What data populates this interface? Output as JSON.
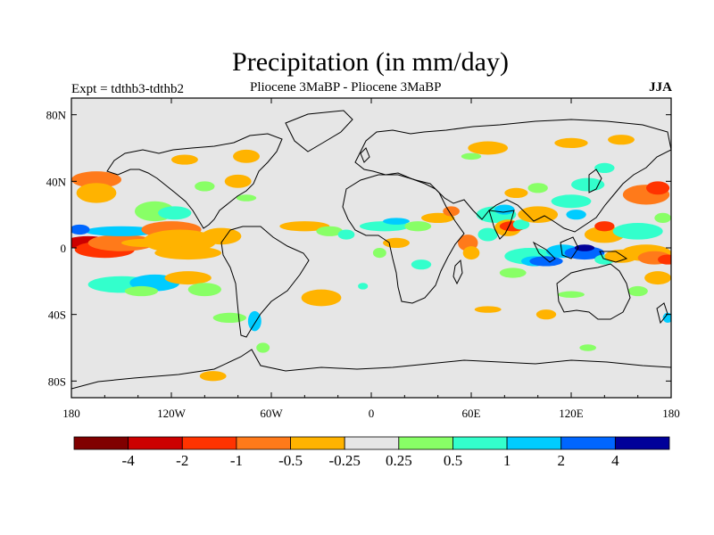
{
  "title": "Precipitation (in mm/day)",
  "subtitle_left": "Expt = tdthb3-tdthb2",
  "subtitle_center": "Pliocene   3MaBP - Pliocene   3MaBP",
  "subtitle_right": "JJA",
  "map": {
    "background_color": "#e6e6e6",
    "lon_range": [
      -180,
      180
    ],
    "lat_range": [
      -90,
      90
    ],
    "lon_ticks": [
      {
        "value": -180,
        "label": "180"
      },
      {
        "value": -120,
        "label": "120W"
      },
      {
        "value": -60,
        "label": "60W"
      },
      {
        "value": 0,
        "label": "0"
      },
      {
        "value": 60,
        "label": "60E"
      },
      {
        "value": 120,
        "label": "120E"
      },
      {
        "value": 180,
        "label": "180"
      }
    ],
    "lat_ticks": [
      {
        "value": 80,
        "label": "80N"
      },
      {
        "value": 40,
        "label": "40N"
      },
      {
        "value": 0,
        "label": "0"
      },
      {
        "value": -40,
        "label": "40S"
      },
      {
        "value": -80,
        "label": "80S"
      }
    ]
  },
  "colorbar": {
    "colors": [
      "#800000",
      "#cc0000",
      "#ff3300",
      "#ff7a1a",
      "#ffb300",
      "#e6e6e6",
      "#88ff66",
      "#33ffcc",
      "#00ccff",
      "#0066ff",
      "#000099"
    ],
    "labels": [
      "-4",
      "-2",
      "-1",
      "-0.5",
      "-0.25",
      "0.25",
      "0.5",
      "1",
      "2",
      "4"
    ]
  },
  "anomalies": [
    {
      "lon": -170,
      "lat": 3,
      "rx": 15,
      "ry": 4,
      "value": -3
    },
    {
      "lon": -160,
      "lat": -1,
      "rx": 18,
      "ry": 5,
      "value": -2
    },
    {
      "lon": -150,
      "lat": 3,
      "rx": 20,
      "ry": 5,
      "value": -0.75
    },
    {
      "lon": -135,
      "lat": 3,
      "rx": 15,
      "ry": 2.5,
      "value": -0.35
    },
    {
      "lon": -150,
      "lat": 10,
      "rx": 22,
      "ry": 3,
      "value": 1.5
    },
    {
      "lon": -175,
      "lat": 11,
      "rx": 6,
      "ry": 3,
      "value": 2.5
    },
    {
      "lon": -120,
      "lat": 11,
      "rx": 18,
      "ry": 5,
      "value": -0.75
    },
    {
      "lon": -115,
      "lat": 4,
      "rx": 22,
      "ry": 7,
      "value": -0.35
    },
    {
      "lon": -110,
      "lat": -3,
      "rx": 20,
      "ry": 4,
      "value": -0.35
    },
    {
      "lon": -90,
      "lat": 7,
      "rx": 12,
      "ry": 5,
      "value": -0.35
    },
    {
      "lon": -130,
      "lat": 22,
      "rx": 12,
      "ry": 6,
      "value": 0.35
    },
    {
      "lon": -118,
      "lat": 21,
      "rx": 10,
      "ry": 4,
      "value": 0.75
    },
    {
      "lon": -165,
      "lat": 41,
      "rx": 15,
      "ry": 5,
      "value": -0.75
    },
    {
      "lon": -165,
      "lat": 33,
      "rx": 12,
      "ry": 6,
      "value": -0.35
    },
    {
      "lon": -150,
      "lat": -22,
      "rx": 20,
      "ry": 5,
      "value": 0.75
    },
    {
      "lon": -130,
      "lat": -21,
      "rx": 15,
      "ry": 5,
      "value": 1.5
    },
    {
      "lon": -110,
      "lat": -18,
      "rx": 14,
      "ry": 4,
      "value": -0.35
    },
    {
      "lon": -100,
      "lat": -25,
      "rx": 10,
      "ry": 4,
      "value": 0.35
    },
    {
      "lon": -138,
      "lat": -26,
      "rx": 10,
      "ry": 3,
      "value": 0.35
    },
    {
      "lon": -85,
      "lat": -42,
      "rx": 10,
      "ry": 3,
      "value": 0.35
    },
    {
      "lon": -70,
      "lat": -44,
      "rx": 4,
      "ry": 6,
      "value": 1.5
    },
    {
      "lon": -65,
      "lat": -60,
      "rx": 4,
      "ry": 3,
      "value": 0.35
    },
    {
      "lon": -95,
      "lat": -77,
      "rx": 8,
      "ry": 3,
      "value": -0.35
    },
    {
      "lon": -112,
      "lat": 53,
      "rx": 8,
      "ry": 3,
      "value": -0.35
    },
    {
      "lon": -75,
      "lat": 55,
      "rx": 8,
      "ry": 4,
      "value": -0.35
    },
    {
      "lon": -80,
      "lat": 40,
      "rx": 8,
      "ry": 4,
      "value": -0.35
    },
    {
      "lon": -100,
      "lat": 37,
      "rx": 6,
      "ry": 3,
      "value": 0.35
    },
    {
      "lon": -75,
      "lat": 30,
      "rx": 6,
      "ry": 2,
      "value": 0.35
    },
    {
      "lon": -40,
      "lat": 13,
      "rx": 15,
      "ry": 3,
      "value": -0.35
    },
    {
      "lon": -25,
      "lat": 10,
      "rx": 8,
      "ry": 3,
      "value": 0.35
    },
    {
      "lon": -15,
      "lat": 8,
      "rx": 5,
      "ry": 3,
      "value": 0.75
    },
    {
      "lon": 8,
      "lat": 13,
      "rx": 15,
      "ry": 3,
      "value": 0.75
    },
    {
      "lon": 15,
      "lat": 16,
      "rx": 8,
      "ry": 2,
      "value": 1.5
    },
    {
      "lon": 28,
      "lat": 13,
      "rx": 8,
      "ry": 3,
      "value": 0.35
    },
    {
      "lon": 40,
      "lat": 18,
      "rx": 10,
      "ry": 3,
      "value": -0.35
    },
    {
      "lon": 48,
      "lat": 22,
      "rx": 5,
      "ry": 3,
      "value": -0.75
    },
    {
      "lon": 15,
      "lat": 3,
      "rx": 8,
      "ry": 3,
      "value": -0.35
    },
    {
      "lon": 5,
      "lat": -3,
      "rx": 4,
      "ry": 3,
      "value": 0.35
    },
    {
      "lon": -5,
      "lat": -23,
      "rx": 3,
      "ry": 2,
      "value": 0.75
    },
    {
      "lon": -30,
      "lat": -30,
      "rx": 12,
      "ry": 5,
      "value": -0.35
    },
    {
      "lon": 30,
      "lat": -10,
      "rx": 6,
      "ry": 3,
      "value": 0.75
    },
    {
      "lon": 58,
      "lat": 3,
      "rx": 6,
      "ry": 5,
      "value": -0.75
    },
    {
      "lon": 60,
      "lat": -3,
      "rx": 5,
      "ry": 4,
      "value": -0.35
    },
    {
      "lon": 70,
      "lat": 8,
      "rx": 6,
      "ry": 4,
      "value": 0.75
    },
    {
      "lon": 75,
      "lat": 20,
      "rx": 12,
      "ry": 5,
      "value": 0.75
    },
    {
      "lon": 80,
      "lat": 23,
      "rx": 6,
      "ry": 3,
      "value": 1.5
    },
    {
      "lon": 82,
      "lat": 12,
      "rx": 8,
      "ry": 5,
      "value": -0.35
    },
    {
      "lon": 85,
      "lat": 13,
      "rx": 8,
      "ry": 3,
      "value": -1.5
    },
    {
      "lon": 90,
      "lat": 14,
      "rx": 5,
      "ry": 3,
      "value": 0.75
    },
    {
      "lon": 100,
      "lat": 20,
      "rx": 12,
      "ry": 5,
      "value": -0.35
    },
    {
      "lon": 87,
      "lat": 33,
      "rx": 7,
      "ry": 3,
      "value": -0.35
    },
    {
      "lon": 100,
      "lat": 36,
      "rx": 6,
      "ry": 3,
      "value": 0.35
    },
    {
      "lon": 120,
      "lat": 28,
      "rx": 12,
      "ry": 4,
      "value": 0.75
    },
    {
      "lon": 123,
      "lat": 20,
      "rx": 6,
      "ry": 3,
      "value": 1.5
    },
    {
      "lon": 130,
      "lat": 38,
      "rx": 10,
      "ry": 4,
      "value": 0.75
    },
    {
      "lon": 140,
      "lat": 48,
      "rx": 6,
      "ry": 3,
      "value": 0.75
    },
    {
      "lon": 70,
      "lat": 60,
      "rx": 12,
      "ry": 4,
      "value": -0.35
    },
    {
      "lon": 60,
      "lat": 55,
      "rx": 6,
      "ry": 2,
      "value": 0.35
    },
    {
      "lon": 120,
      "lat": 63,
      "rx": 10,
      "ry": 3,
      "value": -0.35
    },
    {
      "lon": 150,
      "lat": 65,
      "rx": 8,
      "ry": 3,
      "value": -0.35
    },
    {
      "lon": 140,
      "lat": 8,
      "rx": 12,
      "ry": 5,
      "value": -0.35
    },
    {
      "lon": 140,
      "lat": 13,
      "rx": 6,
      "ry": 3,
      "value": -1.5
    },
    {
      "lon": 160,
      "lat": 10,
      "rx": 15,
      "ry": 5,
      "value": 0.75
    },
    {
      "lon": 165,
      "lat": 32,
      "rx": 14,
      "ry": 6,
      "value": -0.75
    },
    {
      "lon": 172,
      "lat": 36,
      "rx": 7,
      "ry": 4,
      "value": -1.5
    },
    {
      "lon": 175,
      "lat": 18,
      "rx": 5,
      "ry": 3,
      "value": 0.35
    },
    {
      "lon": 95,
      "lat": -5,
      "rx": 15,
      "ry": 5,
      "value": 0.75
    },
    {
      "lon": 98,
      "lat": -8,
      "rx": 8,
      "ry": 3,
      "value": 1.5
    },
    {
      "lon": 105,
      "lat": -8,
      "rx": 10,
      "ry": 3,
      "value": 3
    },
    {
      "lon": 85,
      "lat": -15,
      "rx": 8,
      "ry": 3,
      "value": 0.35
    },
    {
      "lon": 115,
      "lat": -2,
      "rx": 10,
      "ry": 4,
      "value": 1.5
    },
    {
      "lon": 128,
      "lat": -3,
      "rx": 12,
      "ry": 4,
      "value": 3
    },
    {
      "lon": 128,
      "lat": 0,
      "rx": 6,
      "ry": 2,
      "value": 5
    },
    {
      "lon": 140,
      "lat": -7,
      "rx": 6,
      "ry": 3,
      "value": 0.75
    },
    {
      "lon": 150,
      "lat": -5,
      "rx": 10,
      "ry": 4,
      "value": -0.35
    },
    {
      "lon": 165,
      "lat": -3,
      "rx": 15,
      "ry": 5,
      "value": -0.35
    },
    {
      "lon": 170,
      "lat": -6,
      "rx": 10,
      "ry": 4,
      "value": -0.75
    },
    {
      "lon": 178,
      "lat": -7,
      "rx": 6,
      "ry": 3,
      "value": -1.5
    },
    {
      "lon": 172,
      "lat": -18,
      "rx": 8,
      "ry": 4,
      "value": -0.35
    },
    {
      "lon": 120,
      "lat": -28,
      "rx": 8,
      "ry": 2,
      "value": 0.35
    },
    {
      "lon": 105,
      "lat": -40,
      "rx": 6,
      "ry": 3,
      "value": -0.35
    },
    {
      "lon": 178,
      "lat": -42,
      "rx": 3,
      "ry": 3,
      "value": 1.5
    },
    {
      "lon": 70,
      "lat": -37,
      "rx": 8,
      "ry": 2,
      "value": -0.35
    },
    {
      "lon": 130,
      "lat": -60,
      "rx": 5,
      "ry": 2,
      "value": 0.35
    },
    {
      "lon": 160,
      "lat": -26,
      "rx": 6,
      "ry": 3,
      "value": 0.35
    }
  ]
}
